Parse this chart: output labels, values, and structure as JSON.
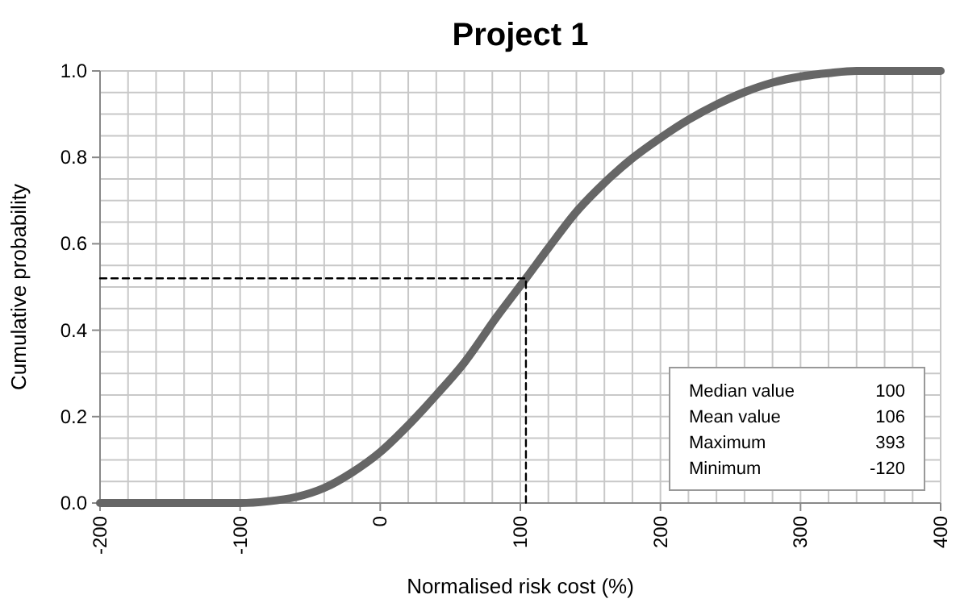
{
  "chart_data": {
    "type": "line",
    "title": "Project 1",
    "xlabel": "Normalised risk cost (%)",
    "ylabel": "Cumulative probability",
    "xlim": [
      -200,
      400
    ],
    "ylim": [
      0,
      1
    ],
    "xticks": [
      -200,
      {
        "value": -180,
        "label": null
      },
      {
        "value": -160,
        "label": null
      },
      {
        "value": -140,
        "label": null
      },
      {
        "value": -120,
        "label": null
      },
      -100,
      {
        "value": -80,
        "label": null
      },
      {
        "value": -60,
        "label": null
      },
      {
        "value": -40,
        "label": null
      },
      {
        "value": -20,
        "label": null
      },
      0,
      {
        "value": 20,
        "label": null
      },
      {
        "value": 40,
        "label": null
      },
      {
        "value": 60,
        "label": null
      },
      {
        "value": 80,
        "label": null
      },
      100,
      {
        "value": 120,
        "label": null
      },
      {
        "value": 140,
        "label": null
      },
      {
        "value": 160,
        "label": null
      },
      {
        "value": 180,
        "label": null
      },
      200,
      {
        "value": 220,
        "label": null
      },
      {
        "value": 240,
        "label": null
      },
      {
        "value": 260,
        "label": null
      },
      {
        "value": 280,
        "label": null
      },
      300,
      {
        "value": 320,
        "label": null
      },
      {
        "value": 340,
        "label": null
      },
      {
        "value": 360,
        "label": null
      },
      {
        "value": 380,
        "label": null
      },
      400
    ],
    "yticks": [
      {
        "value": 0,
        "label": "0.0"
      },
      {
        "value": 0.05,
        "label": null
      },
      {
        "value": 0.1,
        "label": null
      },
      {
        "value": 0.15,
        "label": null
      },
      {
        "value": 0.2,
        "label": "0.2"
      },
      {
        "value": 0.25,
        "label": null
      },
      {
        "value": 0.3,
        "label": null
      },
      {
        "value": 0.35,
        "label": null
      },
      {
        "value": 0.4,
        "label": "0.4"
      },
      {
        "value": 0.45,
        "label": null
      },
      {
        "value": 0.5,
        "label": null
      },
      {
        "value": 0.55,
        "label": null
      },
      {
        "value": 0.6,
        "label": "0.6"
      },
      {
        "value": 0.65,
        "label": null
      },
      {
        "value": 0.7,
        "label": null
      },
      {
        "value": 0.75,
        "label": null
      },
      {
        "value": 0.8,
        "label": "0.8"
      },
      {
        "value": 0.85,
        "label": null
      },
      {
        "value": 0.9,
        "label": null
      },
      {
        "value": 0.95,
        "label": null
      },
      {
        "value": 1,
        "label": "1.0"
      }
    ],
    "grid": true,
    "series": [
      {
        "color": "#666666",
        "line_style": "solid",
        "x": [
          -200,
          -150,
          -100,
          -80,
          -60,
          -40,
          -20,
          0,
          20,
          40,
          60,
          83,
          104,
          120,
          140,
          160,
          180,
          200,
          220,
          240,
          260,
          280,
          300,
          320,
          340,
          370,
          400
        ],
        "values": [
          0,
          0,
          0,
          0.004,
          0.014,
          0.035,
          0.071,
          0.118,
          0.18,
          0.25,
          0.325,
          0.43,
          0.52,
          0.59,
          0.674,
          0.741,
          0.798,
          0.845,
          0.887,
          0.922,
          0.951,
          0.973,
          0.987,
          0.995,
          1,
          1,
          1
        ]
      },
      {
        "color": "#000000",
        "line_style": "dashed",
        "x": [
          -200,
          104,
          104
        ],
        "values": [
          0.52,
          0.52,
          0
        ]
      }
    ],
    "annotations": [
      "Median value 100",
      "Mean value 106",
      "Maximum 393",
      "Minimum -120"
    ]
  }
}
